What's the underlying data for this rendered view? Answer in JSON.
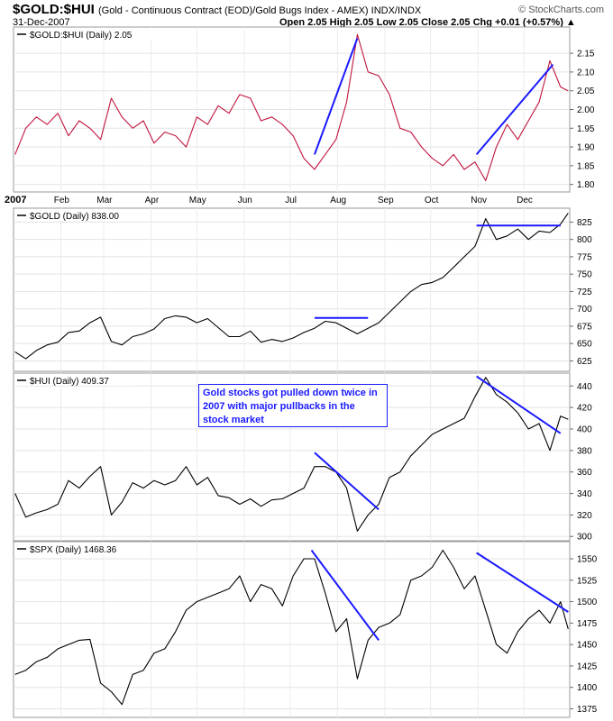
{
  "header": {
    "symbol": "$GOLD:$HUI",
    "description": "(Gold - Continuous Contract (EOD)/Gold Bugs Index - AMEX) INDX/INDX",
    "brand": "© StockCharts.com",
    "date": "31-Dec-2007",
    "ohlc": "Open 2.05  High 2.05  Low 2.05  Close 2.05  Chg +0.01 (+0.57%) ▲"
  },
  "annotation": "Gold stocks got pulled down twice in 2007 with major pullbacks in the stock market",
  "colors": {
    "trendline": "#1a1aff",
    "ratio_line": "#c0143c",
    "price_line": "#000000"
  },
  "chart_data": [
    {
      "type": "line",
      "title": "$GOLD:$HUI (Daily) 2.05",
      "ylim": [
        1.78,
        2.22
      ],
      "yticks": [
        1.8,
        1.85,
        1.9,
        1.95,
        2.0,
        2.05,
        2.1,
        2.15
      ],
      "x_tick_labels": [
        "2007",
        "Feb",
        "Mar",
        "Apr",
        "May",
        "Jun",
        "Jul",
        "Aug",
        "Sep",
        "Oct",
        "Nov",
        "Dec"
      ],
      "series": [
        {
          "x": [
            "Jan 3",
            "Jan 10",
            "Jan 17",
            "Jan 24",
            "Jan 31",
            "Feb 7",
            "Feb 14",
            "Feb 21",
            "Feb 28",
            "Mar 7",
            "Mar 14",
            "Mar 21",
            "Mar 28",
            "Apr 4",
            "Apr 11",
            "Apr 18",
            "Apr 25",
            "May 2",
            "May 9",
            "May 16",
            "May 23",
            "May 30",
            "Jun 6",
            "Jun 13",
            "Jun 20",
            "Jun 27",
            "Jul 4",
            "Jul 11",
            "Jul 18",
            "Jul 25",
            "Aug 1",
            "Aug 8",
            "Aug 15",
            "Aug 22",
            "Aug 29",
            "Sep 5",
            "Sep 12",
            "Sep 19",
            "Sep 26",
            "Oct 3",
            "Oct 10",
            "Oct 17",
            "Oct 24",
            "Oct 31",
            "Nov 7",
            "Nov 14",
            "Nov 21",
            "Nov 28",
            "Dec 5",
            "Dec 12",
            "Dec 19",
            "Dec 26",
            "Dec 31"
          ],
          "values": [
            1.88,
            1.95,
            1.98,
            1.96,
            1.99,
            1.93,
            1.97,
            1.95,
            1.92,
            2.03,
            1.98,
            1.95,
            1.97,
            1.91,
            1.94,
            1.93,
            1.9,
            1.98,
            1.96,
            2.01,
            1.99,
            2.04,
            2.03,
            1.97,
            1.98,
            1.96,
            1.93,
            1.87,
            1.84,
            1.88,
            1.92,
            2.02,
            2.2,
            2.1,
            2.09,
            2.04,
            1.95,
            1.94,
            1.9,
            1.87,
            1.85,
            1.88,
            1.84,
            1.86,
            1.81,
            1.9,
            1.96,
            1.92,
            1.97,
            2.02,
            2.13,
            2.06,
            2.05
          ]
        }
      ],
      "trendlines": [
        {
          "from": [
            "Jul 18",
            1.88
          ],
          "to": [
            "Aug 15",
            2.19
          ]
        },
        {
          "from": [
            "Nov 1",
            1.88
          ],
          "to": [
            "Dec 21",
            2.12
          ]
        }
      ]
    },
    {
      "type": "line",
      "title": "$GOLD (Daily) 838.00",
      "ylim": [
        610,
        845
      ],
      "yticks": [
        625,
        650,
        675,
        700,
        725,
        750,
        775,
        800,
        825
      ],
      "series": [
        {
          "x": [
            "Jan 3",
            "Jan 10",
            "Jan 17",
            "Jan 24",
            "Jan 31",
            "Feb 7",
            "Feb 14",
            "Feb 21",
            "Feb 28",
            "Mar 7",
            "Mar 14",
            "Mar 21",
            "Mar 28",
            "Apr 4",
            "Apr 11",
            "Apr 18",
            "Apr 25",
            "May 2",
            "May 9",
            "May 16",
            "May 23",
            "May 30",
            "Jun 6",
            "Jun 13",
            "Jun 20",
            "Jun 27",
            "Jul 4",
            "Jul 11",
            "Jul 18",
            "Jul 25",
            "Aug 1",
            "Aug 8",
            "Aug 15",
            "Aug 22",
            "Aug 29",
            "Sep 5",
            "Sep 12",
            "Sep 19",
            "Sep 26",
            "Oct 3",
            "Oct 10",
            "Oct 17",
            "Oct 24",
            "Oct 31",
            "Nov 7",
            "Nov 14",
            "Nov 21",
            "Nov 28",
            "Dec 5",
            "Dec 12",
            "Dec 19",
            "Dec 26",
            "Dec 31"
          ],
          "values": [
            638,
            628,
            640,
            648,
            652,
            666,
            668,
            680,
            688,
            653,
            648,
            660,
            664,
            671,
            686,
            690,
            688,
            680,
            686,
            673,
            660,
            660,
            668,
            652,
            656,
            653,
            658,
            666,
            672,
            682,
            680,
            672,
            664,
            672,
            680,
            695,
            710,
            725,
            735,
            738,
            745,
            760,
            775,
            790,
            830,
            800,
            805,
            815,
            800,
            812,
            810,
            822,
            838
          ]
        }
      ],
      "trendlines": [
        {
          "from": [
            "Jul 18",
            687
          ],
          "to": [
            "Aug 22",
            687
          ]
        },
        {
          "from": [
            "Nov 1",
            820
          ],
          "to": [
            "Dec 26",
            820
          ]
        }
      ]
    },
    {
      "type": "line",
      "title": "$HUI (Daily) 409.37",
      "ylim": [
        296,
        452
      ],
      "yticks": [
        300,
        320,
        340,
        360,
        380,
        400,
        420,
        440
      ],
      "series": [
        {
          "x": [
            "Jan 3",
            "Jan 10",
            "Jan 17",
            "Jan 24",
            "Jan 31",
            "Feb 7",
            "Feb 14",
            "Feb 21",
            "Feb 28",
            "Mar 7",
            "Mar 14",
            "Mar 21",
            "Mar 28",
            "Apr 4",
            "Apr 11",
            "Apr 18",
            "Apr 25",
            "May 2",
            "May 9",
            "May 16",
            "May 23",
            "May 30",
            "Jun 6",
            "Jun 13",
            "Jun 20",
            "Jun 27",
            "Jul 4",
            "Jul 11",
            "Jul 18",
            "Jul 25",
            "Aug 1",
            "Aug 8",
            "Aug 15",
            "Aug 22",
            "Aug 29",
            "Sep 5",
            "Sep 12",
            "Sep 19",
            "Sep 26",
            "Oct 3",
            "Oct 10",
            "Oct 17",
            "Oct 24",
            "Oct 31",
            "Nov 7",
            "Nov 14",
            "Nov 21",
            "Nov 28",
            "Dec 5",
            "Dec 12",
            "Dec 19",
            "Dec 26",
            "Dec 31"
          ],
          "values": [
            340,
            318,
            322,
            325,
            330,
            352,
            345,
            356,
            365,
            320,
            332,
            350,
            345,
            352,
            348,
            352,
            365,
            348,
            355,
            338,
            336,
            330,
            335,
            328,
            334,
            335,
            340,
            345,
            365,
            365,
            360,
            345,
            305,
            320,
            330,
            355,
            360,
            375,
            385,
            395,
            400,
            405,
            410,
            430,
            448,
            432,
            425,
            415,
            400,
            405,
            380,
            412,
            409
          ]
        }
      ],
      "trendlines": [
        {
          "from": [
            "Jul 18",
            378
          ],
          "to": [
            "Aug 29",
            325
          ]
        },
        {
          "from": [
            "Nov 1",
            449
          ],
          "to": [
            "Dec 26",
            396
          ]
        }
      ]
    },
    {
      "type": "line",
      "title": "$SPX (Daily) 1468.36",
      "ylim": [
        1365,
        1570
      ],
      "yticks": [
        1375,
        1400,
        1425,
        1450,
        1475,
        1500,
        1525,
        1550
      ],
      "series": [
        {
          "x": [
            "Jan 3",
            "Jan 10",
            "Jan 17",
            "Jan 24",
            "Jan 31",
            "Feb 7",
            "Feb 14",
            "Feb 21",
            "Feb 28",
            "Mar 7",
            "Mar 14",
            "Mar 21",
            "Mar 28",
            "Apr 4",
            "Apr 11",
            "Apr 18",
            "Apr 25",
            "May 2",
            "May 9",
            "May 16",
            "May 23",
            "May 30",
            "Jun 6",
            "Jun 13",
            "Jun 20",
            "Jun 27",
            "Jul 4",
            "Jul 11",
            "Jul 18",
            "Jul 25",
            "Aug 1",
            "Aug 8",
            "Aug 15",
            "Aug 22",
            "Aug 29",
            "Sep 5",
            "Sep 12",
            "Sep 19",
            "Sep 26",
            "Oct 3",
            "Oct 10",
            "Oct 17",
            "Oct 24",
            "Oct 31",
            "Nov 7",
            "Nov 14",
            "Nov 21",
            "Nov 28",
            "Dec 5",
            "Dec 12",
            "Dec 19",
            "Dec 26",
            "Dec 31"
          ],
          "values": [
            1415,
            1420,
            1430,
            1435,
            1445,
            1450,
            1455,
            1456,
            1405,
            1395,
            1380,
            1415,
            1420,
            1440,
            1445,
            1465,
            1490,
            1500,
            1505,
            1510,
            1515,
            1530,
            1500,
            1520,
            1515,
            1495,
            1530,
            1550,
            1550,
            1510,
            1465,
            1480,
            1410,
            1455,
            1470,
            1475,
            1485,
            1525,
            1530,
            1540,
            1560,
            1540,
            1515,
            1530,
            1490,
            1450,
            1440,
            1465,
            1480,
            1490,
            1475,
            1500,
            1468
          ]
        }
      ],
      "trendlines": [
        {
          "from": [
            "Jul 16",
            1560
          ],
          "to": [
            "Aug 29",
            1455
          ]
        },
        {
          "from": [
            "Nov 1",
            1557
          ],
          "to": [
            "Dec 31",
            1488
          ]
        }
      ]
    }
  ]
}
